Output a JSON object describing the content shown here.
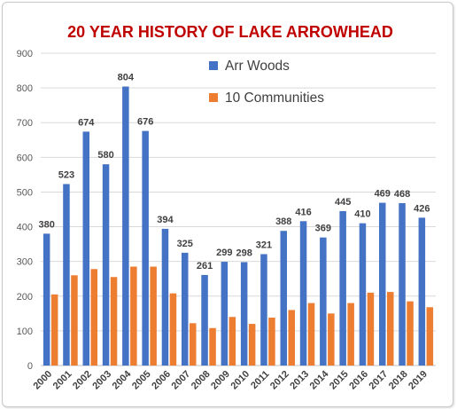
{
  "chart_data": {
    "type": "bar",
    "title": "20 YEAR HISTORY OF LAKE ARROWHEAD",
    "categories": [
      "2000",
      "2001",
      "2002",
      "2003",
      "2004",
      "2005",
      "2006",
      "2007",
      "2008",
      "2009",
      "2010",
      "2011",
      "2012",
      "2013",
      "2014",
      "2015",
      "2016",
      "2017",
      "2018",
      "2019"
    ],
    "series": [
      {
        "name": "Arr Woods",
        "values": [
          380,
          523,
          674,
          580,
          804,
          676,
          394,
          325,
          261,
          299,
          298,
          321,
          388,
          416,
          369,
          445,
          410,
          469,
          468,
          426
        ],
        "labels": [
          "380",
          "523",
          "674",
          "580",
          "804",
          "676",
          "394",
          "325",
          "261",
          "299",
          "298",
          "321",
          "388",
          "416",
          "369",
          "445",
          "410",
          "469",
          "468",
          "426"
        ]
      },
      {
        "name": "10 Communities",
        "values": [
          205,
          260,
          278,
          255,
          285,
          285,
          208,
          122,
          108,
          140,
          120,
          138,
          160,
          180,
          150,
          180,
          210,
          212,
          185,
          168
        ]
      }
    ],
    "ylim": [
      0,
      900
    ],
    "yticks": [
      0,
      100,
      200,
      300,
      400,
      500,
      600,
      700,
      800,
      900
    ],
    "ytick_labels": [
      "0",
      "100",
      "200",
      "300",
      "400",
      "500",
      "600",
      "700",
      "800",
      "900"
    ],
    "grid": true,
    "legend_position": "top-right",
    "colors": {
      "Arr Woods": "#4472C4",
      "10 Communities": "#ED7D31",
      "title": "#C00000"
    }
  }
}
